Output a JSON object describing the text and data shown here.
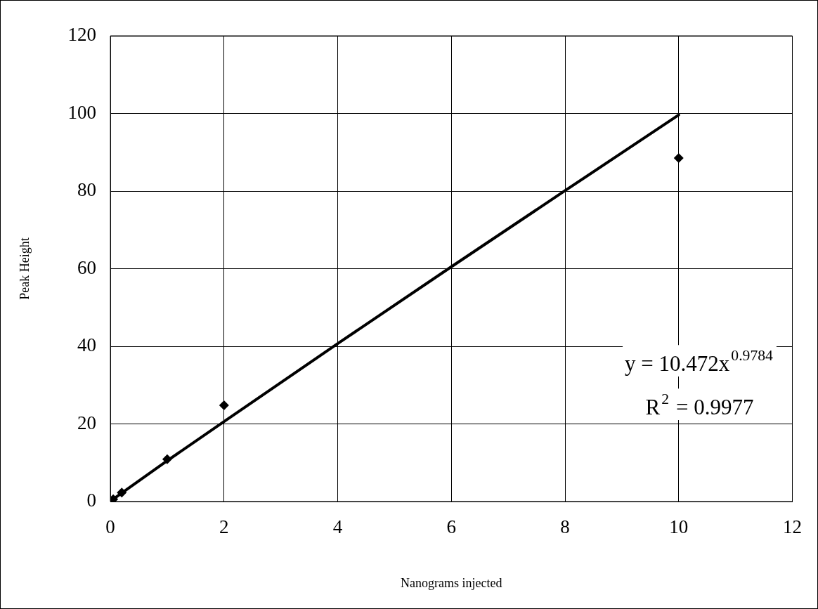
{
  "chart_data": {
    "type": "scatter",
    "xlabel": "Nanograms injected",
    "ylabel": "Peak Height",
    "xlim": [
      0,
      12
    ],
    "xticks": [
      0,
      2,
      4,
      6,
      8,
      10,
      12
    ],
    "ylim": [
      0,
      120
    ],
    "yticks": [
      0,
      20,
      40,
      60,
      80,
      100,
      120
    ],
    "grid": true,
    "legend": false,
    "series": [
      {
        "color": "#000000",
        "marker": "diamond",
        "x": [
          0.05,
          0.2,
          1,
          2,
          10
        ],
        "values": [
          0.6,
          2.3,
          10.9,
          24.8,
          88.5
        ]
      },
      {
        "type": "line",
        "color": "#000000",
        "marker": "none",
        "line_style": "solid",
        "x": [
          0.05,
          0.2,
          1,
          2,
          4,
          6,
          8,
          10
        ],
        "values": [
          0.6,
          2.2,
          10.5,
          20.6,
          40.7,
          60.5,
          80.1,
          99.6
        ]
      }
    ],
    "annotations": [
      "y = 10.472x$^{0.9784}$",
      "R$^{2}$ = 0.9977"
    ]
  }
}
